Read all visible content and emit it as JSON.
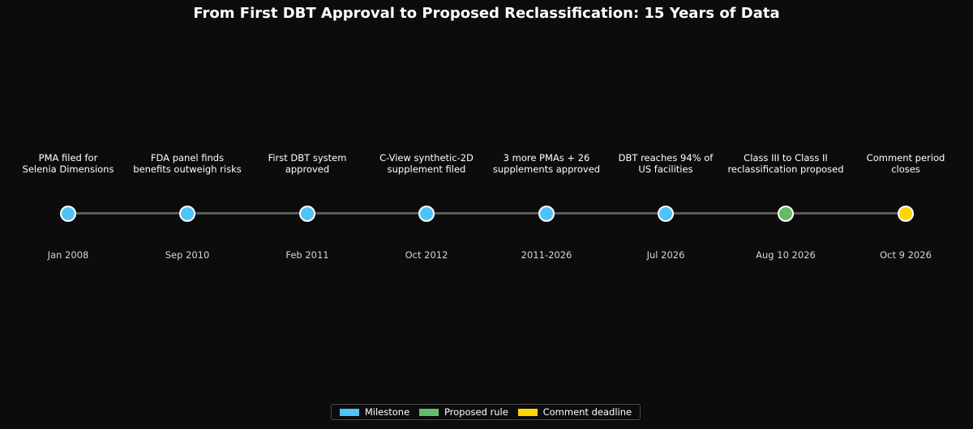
{
  "title": "From First DBT Approval to Proposed Reclassification: 15 Years of Data",
  "colors": {
    "milestone": "#4fc3f7",
    "proposed_rule": "#66bb6a",
    "comment_deadline": "#ffd600",
    "line": "#595959",
    "background": "#0c0c0c"
  },
  "events": [
    {
      "lines": [
        "PMA filed for",
        "Selenia Dimensions"
      ],
      "date": "Jan 2008",
      "type": "milestone"
    },
    {
      "lines": [
        "FDA panel finds",
        "benefits outweigh risks"
      ],
      "date": "Sep 2010",
      "type": "milestone"
    },
    {
      "lines": [
        "First DBT system",
        "approved"
      ],
      "date": "Feb 2011",
      "type": "milestone"
    },
    {
      "lines": [
        "C-View synthetic-2D",
        "supplement filed"
      ],
      "date": "Oct 2012",
      "type": "milestone"
    },
    {
      "lines": [
        "3 more PMAs + 26",
        "supplements approved"
      ],
      "date": "2011-2026",
      "type": "milestone"
    },
    {
      "lines": [
        "DBT reaches 94% of",
        "US facilities"
      ],
      "date": "Jul 2026",
      "type": "milestone"
    },
    {
      "lines": [
        "Class III to Class II",
        "reclassification proposed"
      ],
      "date": "Aug 10 2026",
      "type": "proposed_rule"
    },
    {
      "lines": [
        "Comment period",
        "closes"
      ],
      "date": "Oct 9 2026",
      "type": "comment_deadline"
    }
  ],
  "legend": [
    {
      "label": "Milestone",
      "type": "milestone"
    },
    {
      "label": "Proposed rule",
      "type": "proposed_rule"
    },
    {
      "label": "Comment deadline",
      "type": "comment_deadline"
    }
  ]
}
